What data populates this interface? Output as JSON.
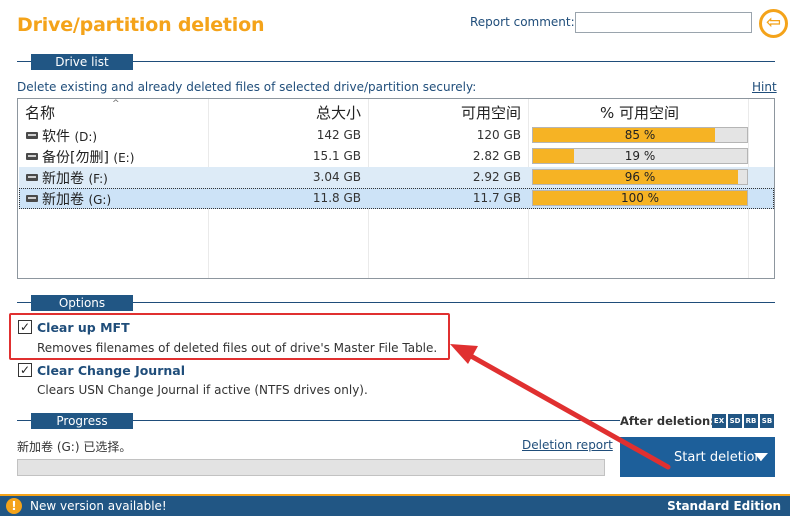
{
  "header": {
    "title": "Drive/partition deletion",
    "report_comment_label": "Report comment:",
    "report_comment_value": "",
    "back_glyph": "⇦"
  },
  "drive_list": {
    "section_label": "Drive list",
    "description": "Delete existing and already deleted files of selected drive/partition securely:",
    "hint_link": "Hint",
    "columns": {
      "name": "名称",
      "total": "总大小",
      "free": "可用空间",
      "pct": "% 可用空间"
    },
    "rows": [
      {
        "name": "软件",
        "drive": "(D:)",
        "total": "142 GB",
        "free": "120 GB",
        "pct_label": "85 %",
        "pct": 85,
        "icon": "drive-icon"
      },
      {
        "name": "备份[勿删]",
        "drive": "(E:)",
        "total": "15.1 GB",
        "free": "2.82 GB",
        "pct_label": "19 %",
        "pct": 19,
        "icon": "drive-icon"
      },
      {
        "name": "新加卷",
        "drive": "(F:)",
        "total": "3.04 GB",
        "free": "2.92 GB",
        "pct_label": "96 %",
        "pct": 96,
        "icon": "drive-icon"
      },
      {
        "name": "新加卷",
        "drive": "(G:)",
        "total": "11.8 GB",
        "free": "11.7 GB",
        "pct_label": "100 %",
        "pct": 100,
        "icon": "drive-icon",
        "selected": true
      }
    ]
  },
  "options": {
    "section_label": "Options",
    "items": [
      {
        "title": "Clear up MFT",
        "description": "Removes filenames of deleted files out of drive's Master File Table.",
        "checked": true
      },
      {
        "title": "Clear Change Journal",
        "description": "Clears USN Change Journal if active (NTFS drives only).",
        "checked": true
      }
    ]
  },
  "progress": {
    "section_label": "Progress",
    "status_text": "新加卷 (G:) 已选择。",
    "report_link": "Deletion report",
    "value": 0
  },
  "after_deletion": {
    "label": "After deletion:",
    "badges": [
      "EX",
      "SD",
      "RB",
      "SB"
    ]
  },
  "start_button": {
    "label": "Start deletion"
  },
  "footer": {
    "warning_glyph": "!",
    "new_version": "New version available!",
    "edition": "Standard Edition"
  },
  "colors": {
    "accent_orange": "#f4a31a",
    "brand_blue": "#215684",
    "bar_fill": "#f6b324",
    "annotation_red": "#e03030"
  }
}
